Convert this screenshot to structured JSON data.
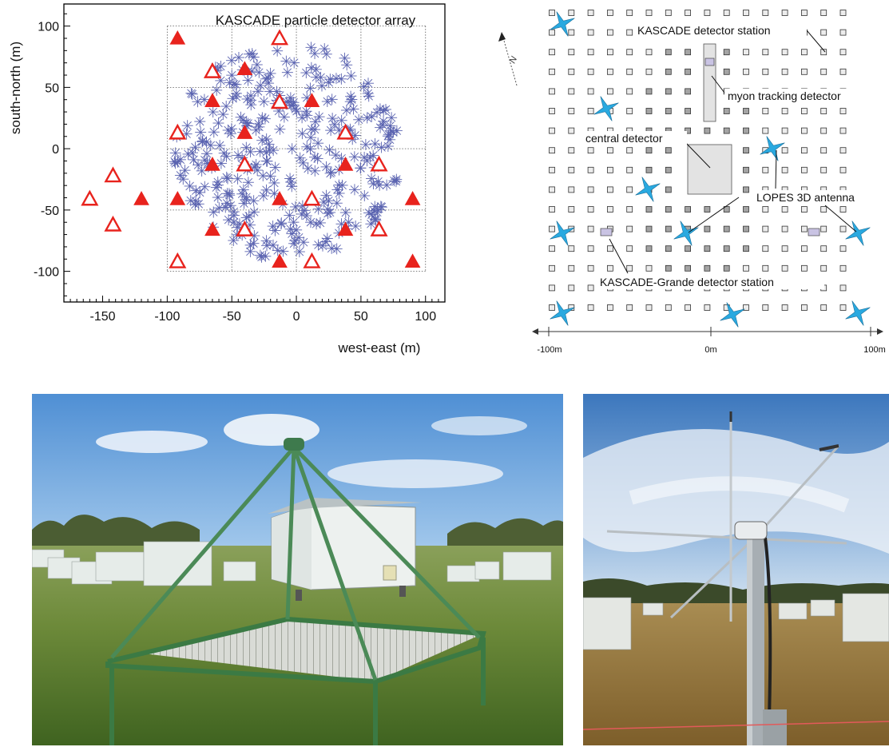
{
  "chart_data": [
    {
      "type": "scatter",
      "title": "KASCADE particle detector array",
      "xlabel": "west-east (m)",
      "ylabel": "south-north (m)",
      "xlim": [
        -180,
        115
      ],
      "ylim": [
        -125,
        118
      ],
      "xticks": [
        -150,
        -100,
        -50,
        0,
        50,
        100
      ],
      "yticks": [
        100,
        50,
        0,
        -50,
        -100
      ],
      "grid": "dotted 4x4 cells from -100 to 100",
      "filled_triangles": [
        [
          -92,
          90
        ],
        [
          -40,
          65
        ],
        [
          -65,
          39
        ],
        [
          12,
          39
        ],
        [
          -40,
          13
        ],
        [
          -65,
          -13
        ],
        [
          38,
          -13
        ],
        [
          -120,
          -41
        ],
        [
          -92,
          -41
        ],
        [
          -13,
          -41
        ],
        [
          90,
          -41
        ],
        [
          -65,
          -66
        ],
        [
          38,
          -66
        ],
        [
          -13,
          -92
        ],
        [
          90,
          -92
        ]
      ],
      "open_triangles": [
        [
          -13,
          90
        ],
        [
          -65,
          63
        ],
        [
          -13,
          38
        ],
        [
          -92,
          13
        ],
        [
          38,
          13
        ],
        [
          -142,
          -22
        ],
        [
          -40,
          -13
        ],
        [
          64,
          -13
        ],
        [
          -160,
          -41
        ],
        [
          12,
          -41
        ],
        [
          -142,
          -62
        ],
        [
          -40,
          -66
        ],
        [
          64,
          -66
        ],
        [
          -92,
          -92
        ],
        [
          12,
          -92
        ]
      ],
      "colors": {
        "triangles": "#e8231d",
        "stars": "#5a63b0"
      }
    }
  ],
  "schematic": {
    "labels": {
      "kascade_station": "KASCADE detector station",
      "myon": "myon tracking detector",
      "central": "central detector",
      "lopes": "LOPES 3D antenna",
      "grande": "KASCADE-Grande detector station"
    },
    "axis": {
      "left": "-100m",
      "mid": "0m",
      "right": "100m"
    },
    "north": "N",
    "colors": {
      "antenna": "#29a9e0",
      "grande": "#c9c3e3",
      "station_dark": "#a4a4a4",
      "station_light": "#ececec"
    }
  },
  "photos": {
    "left": "KASCADE detector station photo",
    "right": "LOPES 3D antenna photo"
  }
}
